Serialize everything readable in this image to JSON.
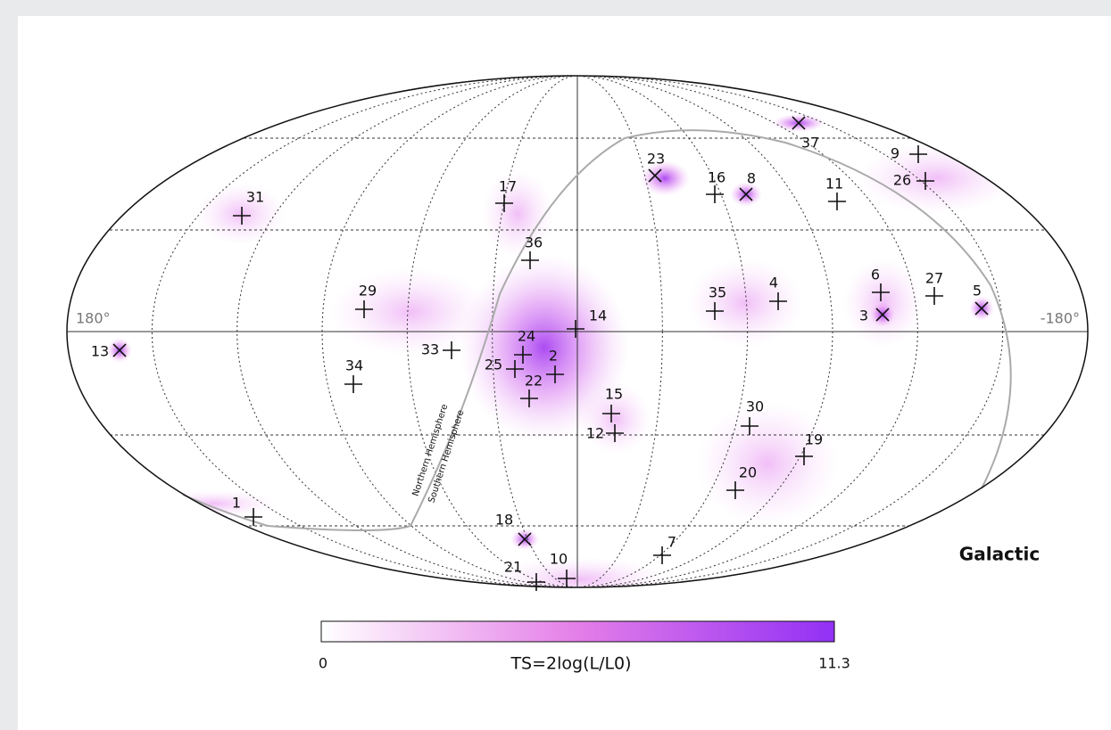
{
  "map": {
    "frame": "Galactic",
    "left_longitude": "180°",
    "right_longitude": "-180°",
    "plane_labels": [
      "Northern Hemisphere",
      "Southern Hemisphere"
    ],
    "colorbar": {
      "min": "0",
      "max": "11.3",
      "label": "TS=2log(L/L0)"
    },
    "sources": [
      {
        "label": "1",
        "marker": "plus"
      },
      {
        "label": "2",
        "marker": "plus"
      },
      {
        "label": "3",
        "marker": "cross"
      },
      {
        "label": "4",
        "marker": "plus"
      },
      {
        "label": "5",
        "marker": "cross"
      },
      {
        "label": "6",
        "marker": "plus"
      },
      {
        "label": "7",
        "marker": "plus"
      },
      {
        "label": "8",
        "marker": "cross"
      },
      {
        "label": "9",
        "marker": "plus"
      },
      {
        "label": "10",
        "marker": "plus"
      },
      {
        "label": "11",
        "marker": "plus"
      },
      {
        "label": "12",
        "marker": "plus"
      },
      {
        "label": "13",
        "marker": "cross"
      },
      {
        "label": "14",
        "marker": "plus"
      },
      {
        "label": "15",
        "marker": "plus"
      },
      {
        "label": "16",
        "marker": "plus"
      },
      {
        "label": "17",
        "marker": "plus"
      },
      {
        "label": "18",
        "marker": "cross"
      },
      {
        "label": "19",
        "marker": "plus"
      },
      {
        "label": "20",
        "marker": "plus"
      },
      {
        "label": "21",
        "marker": "plus"
      },
      {
        "label": "22",
        "marker": "plus"
      },
      {
        "label": "23",
        "marker": "cross"
      },
      {
        "label": "24",
        "marker": "plus"
      },
      {
        "label": "25",
        "marker": "plus"
      },
      {
        "label": "26",
        "marker": "plus"
      },
      {
        "label": "27",
        "marker": "plus"
      },
      {
        "label": "29",
        "marker": "plus"
      },
      {
        "label": "30",
        "marker": "plus"
      },
      {
        "label": "31",
        "marker": "plus"
      },
      {
        "label": "33",
        "marker": "plus"
      },
      {
        "label": "34",
        "marker": "plus"
      },
      {
        "label": "35",
        "marker": "plus"
      },
      {
        "label": "36",
        "marker": "plus"
      },
      {
        "label": "37",
        "marker": "cross"
      }
    ]
  }
}
